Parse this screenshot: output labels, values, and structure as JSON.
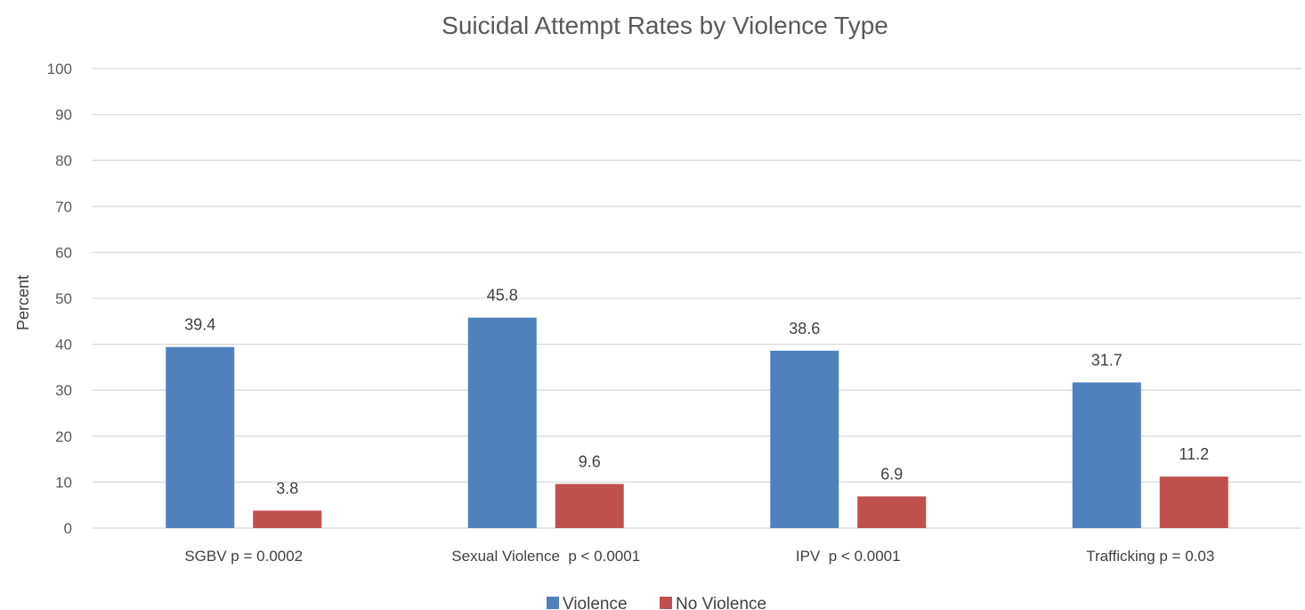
{
  "chart_data": {
    "type": "bar",
    "title": "Suicidal Attempt Rates by Violence Type",
    "xlabel": "",
    "ylabel": "Percent",
    "ylim": [
      0,
      100
    ],
    "yticks": [
      0,
      10,
      20,
      30,
      40,
      50,
      60,
      70,
      80,
      90,
      100
    ],
    "grid": true,
    "legend_position": "bottom",
    "categories": [
      "SGBV p = 0.0002",
      "Sexual Violence  p < 0.0001",
      "IPV  p < 0.0001",
      "Trafficking p = 0.03"
    ],
    "series": [
      {
        "name": "Violence",
        "color": "#4f81bd",
        "values": [
          39.4,
          45.8,
          38.6,
          31.7
        ]
      },
      {
        "name": "No Violence",
        "color": "#c0504d",
        "values": [
          3.8,
          9.6,
          6.9,
          11.2
        ]
      }
    ]
  }
}
